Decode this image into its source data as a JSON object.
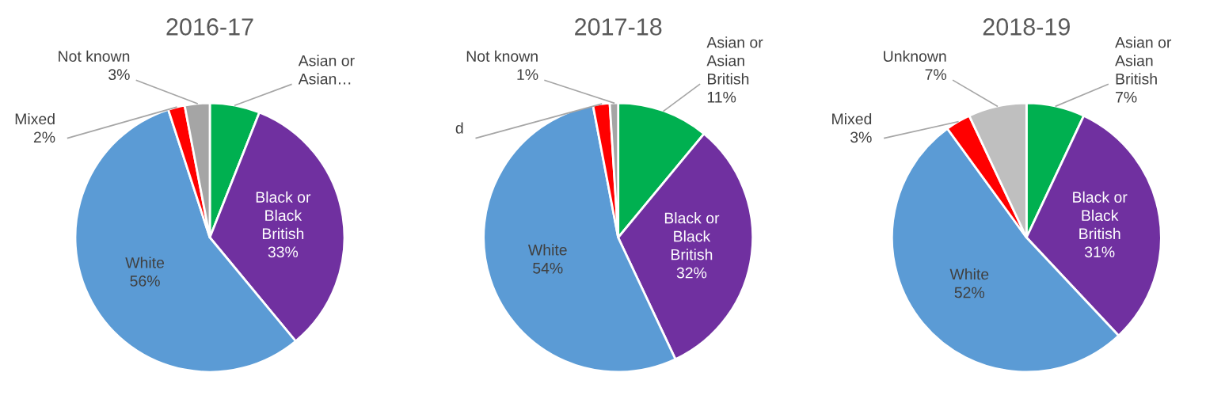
{
  "chart_data": [
    {
      "type": "pie",
      "title": "2016-17",
      "categories": [
        "Asian or Asian…",
        "Black or Black British",
        "White",
        "Mixed",
        "Not known"
      ],
      "values": [
        6,
        33,
        56,
        2,
        3
      ],
      "value_labels": [
        null,
        "33%",
        "56%",
        "2%",
        "3%"
      ],
      "colors": [
        "#00b050",
        "#7030a0",
        "#5b9bd5",
        "#ff0000",
        "#a5a5a5"
      ],
      "legend": false
    },
    {
      "type": "pie",
      "title": "2017-18",
      "categories": [
        "Asian or Asian British",
        "Black or Black British",
        "White",
        "d",
        "Not known"
      ],
      "values": [
        11,
        32,
        54,
        2,
        1
      ],
      "value_labels": [
        "11%",
        "32%",
        "54%",
        null,
        "1%"
      ],
      "colors": [
        "#00b050",
        "#7030a0",
        "#5b9bd5",
        "#ff0000",
        "#a5a5a5"
      ],
      "legend": false
    },
    {
      "type": "pie",
      "title": "2018-19",
      "categories": [
        "Asian or Asian British",
        "Black or Black British",
        "White",
        "Mixed",
        "Unknown"
      ],
      "values": [
        7,
        31,
        52,
        3,
        7
      ],
      "value_labels": [
        "7%",
        "31%",
        "52%",
        "3%",
        "7%"
      ],
      "colors": [
        "#00b050",
        "#7030a0",
        "#5b9bd5",
        "#ff0000",
        "#bfbfbf"
      ],
      "legend": false
    }
  ]
}
